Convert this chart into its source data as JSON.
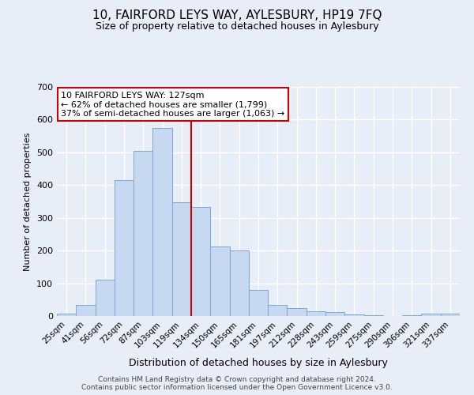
{
  "title": "10, FAIRFORD LEYS WAY, AYLESBURY, HP19 7FQ",
  "subtitle": "Size of property relative to detached houses in Aylesbury",
  "xlabel": "Distribution of detached houses by size in Aylesbury",
  "ylabel": "Number of detached properties",
  "bar_labels": [
    "25sqm",
    "41sqm",
    "56sqm",
    "72sqm",
    "87sqm",
    "103sqm",
    "119sqm",
    "134sqm",
    "150sqm",
    "165sqm",
    "181sqm",
    "197sqm",
    "212sqm",
    "228sqm",
    "243sqm",
    "259sqm",
    "275sqm",
    "290sqm",
    "306sqm",
    "321sqm",
    "337sqm"
  ],
  "bar_heights": [
    8,
    35,
    112,
    415,
    505,
    575,
    348,
    332,
    212,
    200,
    80,
    35,
    25,
    15,
    13,
    5,
    3,
    0,
    3,
    8,
    8
  ],
  "bar_color": "#c6d9f1",
  "bar_edge_color": "#7da9d8",
  "vline_x": 6.5,
  "vline_color": "#cc0000",
  "annotation_text": "10 FAIRFORD LEYS WAY: 127sqm\n← 62% of detached houses are smaller (1,799)\n37% of semi-detached houses are larger (1,063) →",
  "annotation_box_color": "#ffffff",
  "annotation_box_edge": "#cc0000",
  "ylim": [
    0,
    700
  ],
  "yticks": [
    0,
    100,
    200,
    300,
    400,
    500,
    600,
    700
  ],
  "footer1": "Contains HM Land Registry data © Crown copyright and database right 2024.",
  "footer2": "Contains public sector information licensed under the Open Government Licence v3.0.",
  "bg_color": "#e8eef8",
  "grid_color": "#ffffff",
  "title_fontsize": 11,
  "subtitle_fontsize": 9
}
